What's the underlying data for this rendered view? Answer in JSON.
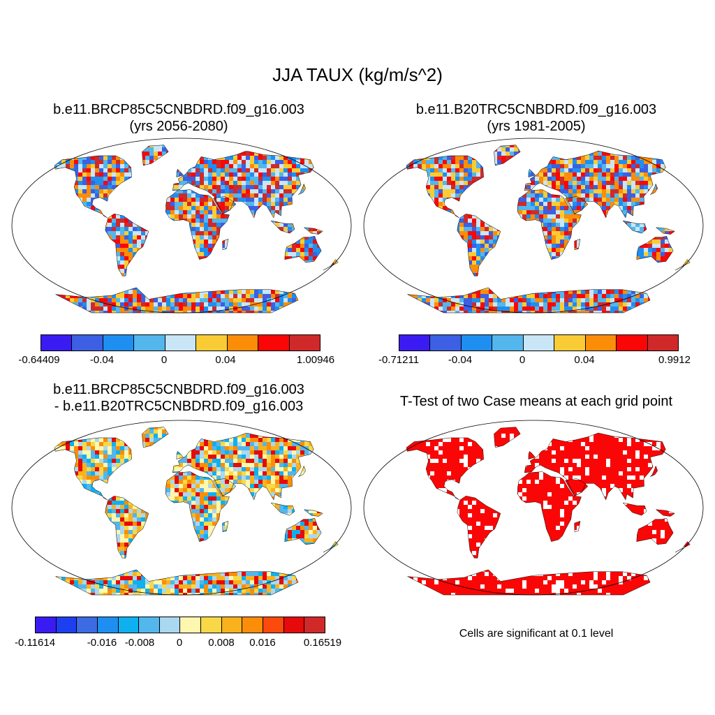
{
  "title": "JJA TAUX (kg/m/s^2)",
  "panels": [
    {
      "title1": "b.e11.BRCP85C5CNBDRD.f09_g16.003",
      "title2": "(yrs 2056-2080)"
    },
    {
      "title1": "b.e11.B20TRC5CNBDRD.f09_g16.003",
      "title2": "(yrs 1981-2005)"
    },
    {
      "title1": "b.e11.BRCP85C5CNBDRD.f09_g16.003",
      "title2": "- b.e11.B20TRC5CNBDRD.f09_g16.003"
    },
    {
      "title1": "T-Test of two Case means at each grid point"
    }
  ],
  "colorbars": [
    {
      "colors": [
        "#3a1cf2",
        "#3c5fe3",
        "#1e8ff0",
        "#53b6ec",
        "#c9e6f6",
        "#f9cc36",
        "#fb8d08",
        "#fb0606",
        "#d0292a"
      ],
      "ticks": [
        "-0.64409",
        "-0.04",
        "0",
        "0.04",
        "1.00946"
      ]
    },
    {
      "colors": [
        "#3a1cf2",
        "#3c5fe3",
        "#1e8ff0",
        "#53b6ec",
        "#c9e6f6",
        "#f9cc36",
        "#fb8d08",
        "#fb0606",
        "#d0292a"
      ],
      "ticks": [
        "-0.71211",
        "-0.04",
        "0",
        "0.04",
        "0.9912"
      ]
    },
    {
      "colors": [
        "#3a1cf2",
        "#1e3ff0",
        "#3c6be3",
        "#1e8ff0",
        "#0fb0f0",
        "#53b6ec",
        "#aad8f0",
        "#fdf7b0",
        "#f9d848",
        "#f9b21e",
        "#fb8d08",
        "#fb4a0c",
        "#e60a0a",
        "#d0292a"
      ],
      "ticks": [
        "-0.11614",
        "-0.016",
        "-0.008",
        "0",
        "0.008",
        "0.016",
        "0.16519"
      ]
    }
  ],
  "significance_note": "Cells are significant at 0.1 level"
}
